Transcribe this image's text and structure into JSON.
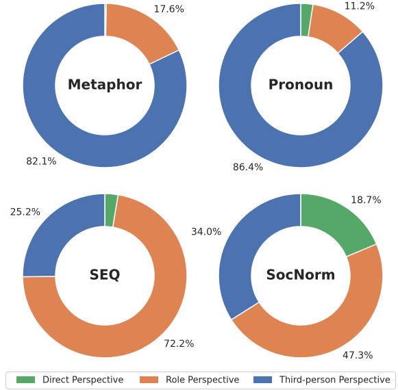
{
  "chart_data": [
    {
      "type": "donut",
      "title": "Metaphor",
      "categories": [
        "Direct Perspective",
        "Role Perspective",
        "Third-person Perspective"
      ],
      "colors": [
        "#55a868",
        "#dd8452",
        "#4c72b0"
      ],
      "values": [
        0.3,
        17.6,
        82.1
      ],
      "value_labels": [
        null,
        "17.6%",
        "82.1%"
      ]
    },
    {
      "type": "donut",
      "title": "Pronoun",
      "categories": [
        "Direct Perspective",
        "Role Perspective",
        "Third-person Perspective"
      ],
      "colors": [
        "#55a868",
        "#dd8452",
        "#4c72b0"
      ],
      "values": [
        2.4,
        11.2,
        86.4
      ],
      "value_labels": [
        null,
        "11.2%",
        "86.4%"
      ]
    },
    {
      "type": "donut",
      "title": "SEQ",
      "categories": [
        "Direct Perspective",
        "Role Perspective",
        "Third-person Perspective"
      ],
      "colors": [
        "#55a868",
        "#dd8452",
        "#4c72b0"
      ],
      "values": [
        2.6,
        72.2,
        25.2
      ],
      "value_labels": [
        null,
        "72.2%",
        "25.2%"
      ]
    },
    {
      "type": "donut",
      "title": "SocNorm",
      "categories": [
        "Direct Perspective",
        "Role Perspective",
        "Third-person Perspective"
      ],
      "colors": [
        "#55a868",
        "#dd8452",
        "#4c72b0"
      ],
      "values": [
        18.7,
        47.3,
        34.0
      ],
      "value_labels": [
        "18.7%",
        "47.3%",
        "34.0%"
      ]
    }
  ]
}
